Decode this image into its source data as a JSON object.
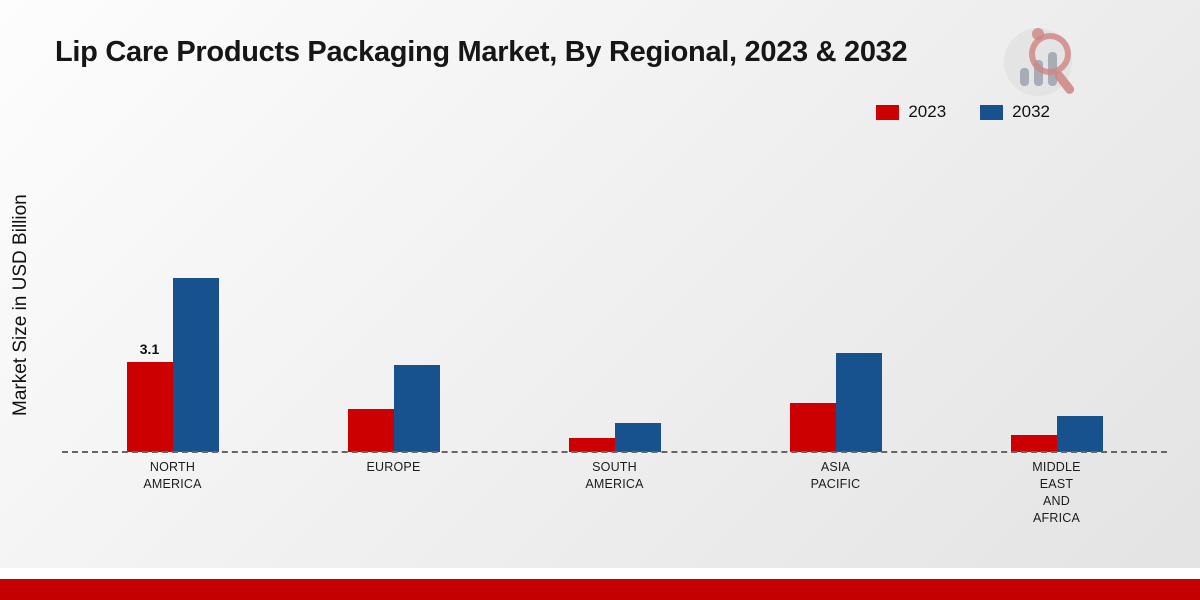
{
  "title": "Lip Care Products Packaging Market, By Regional, 2023 & 2032",
  "ylabel": "Market Size in USD Billion",
  "brand": {
    "logo_icon": "bar-chart-magnifier-logo"
  },
  "colors": {
    "series_2023": "#cc0000",
    "series_2032": "#17518e",
    "bottom_bar": "#c40000",
    "baseline": "#666666"
  },
  "chart_data": {
    "type": "bar",
    "title": "Lip Care Products Packaging Market, By Regional, 2023 & 2032",
    "xlabel": "",
    "ylabel": "Market Size in USD Billion",
    "ylim": [
      0,
      6.5
    ],
    "grid": false,
    "legend_position": "top-right",
    "baseline_style": "dashed",
    "categories": [
      "NORTH\nAMERICA",
      "EUROPE",
      "SOUTH\nAMERICA",
      "ASIA\nPACIFIC",
      "MIDDLE\nEAST\nAND\nAFRICA"
    ],
    "series": [
      {
        "name": "2023",
        "color": "#cc0000",
        "values": [
          3.1,
          1.5,
          0.5,
          1.7,
          0.6
        ]
      },
      {
        "name": "2032",
        "color": "#17518e",
        "values": [
          6.0,
          3.0,
          1.0,
          3.4,
          1.25
        ]
      }
    ],
    "annotations": [
      {
        "series_index": 0,
        "category_index": 0,
        "text": "3.1"
      }
    ]
  }
}
